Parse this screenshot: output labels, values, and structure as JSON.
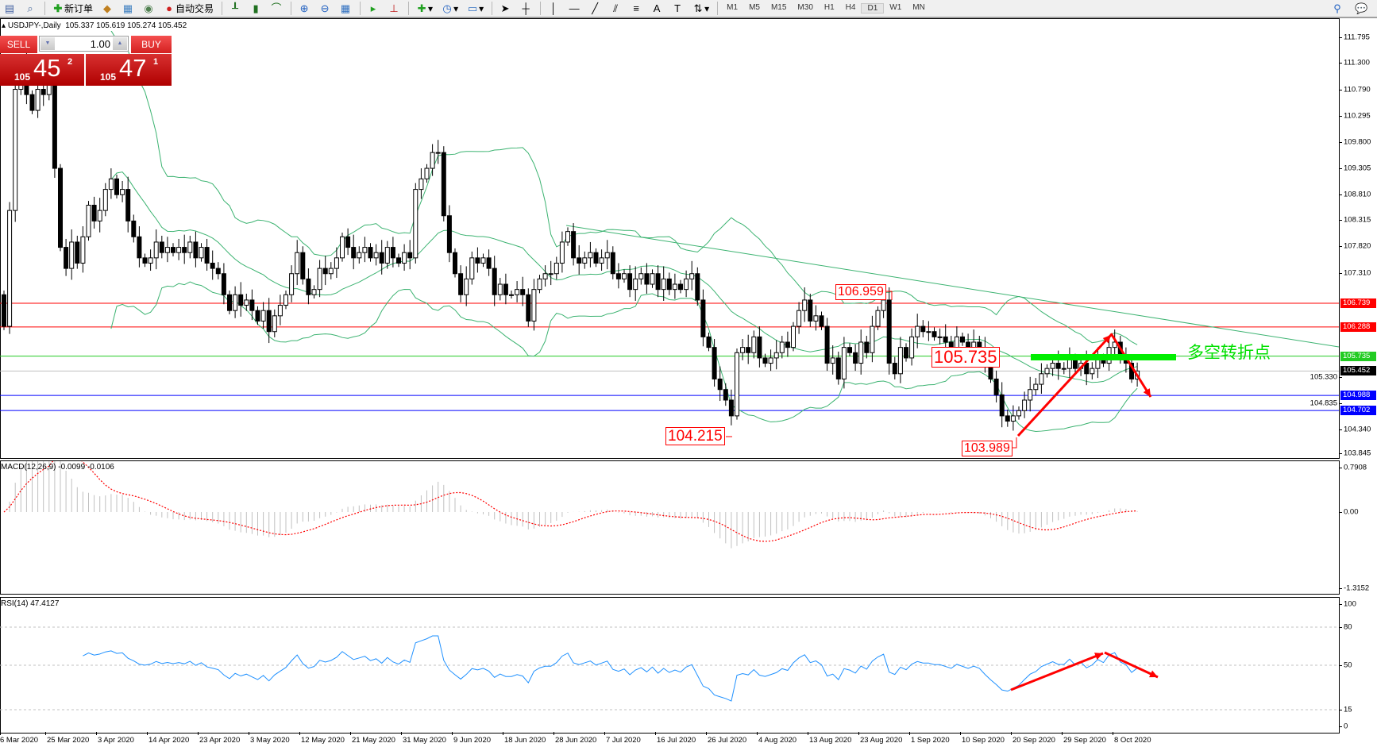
{
  "toolbar": {
    "new_order": "新订单",
    "auto_trading": "自动交易",
    "timeframes": [
      "M1",
      "M5",
      "M15",
      "M30",
      "H1",
      "H4",
      "D1",
      "W1",
      "MN"
    ],
    "active_timeframe": "D1",
    "icons": [
      "new-chart-icon",
      "profiles-icon",
      "new-order-icon",
      "metaeditor-icon",
      "navigator-icon",
      "signals-icon",
      "auto-trading-icon",
      "bar-chart-icon",
      "candlestick-icon",
      "line-chart-icon",
      "zoom-in-icon",
      "zoom-out-icon",
      "tile-windows-icon",
      "autoscroll-icon",
      "chart-shift-icon",
      "indicators-icon",
      "periods-icon",
      "templates-icon",
      "cursor-icon",
      "crosshair-icon",
      "vertical-line-icon",
      "horizontal-line-icon",
      "trendline-icon",
      "equidistant-channel-icon",
      "fibonacci-icon",
      "text-icon",
      "text-label-icon",
      "arrows-icon",
      "search-icon",
      "chat-icon"
    ]
  },
  "chart": {
    "title": "USDJPY-,Daily",
    "ohlc_readout": "105.337 105.619 105.274 105.452"
  },
  "trade_panel": {
    "sell_label": "SELL",
    "buy_label": "BUY",
    "lot": "1.00",
    "sell_price": {
      "prefix": "105",
      "big": "45",
      "sup": "2"
    },
    "buy_price": {
      "prefix": "105",
      "big": "47",
      "sup": "1"
    }
  },
  "indicators": {
    "macd_label": "MACD(12,26,9) -0.0099 -0.0106",
    "rsi_label": "RSI(14) 47.4127"
  },
  "annotations": {
    "high_label": "106.959",
    "mid_label": "105.735",
    "low_label_1": "104.215",
    "low_label_2": "103.989",
    "turning_point_text": "多空转折点"
  },
  "chart_data": {
    "type": "candlestick",
    "symbol": "USDJPY-",
    "timeframe": "Daily",
    "closes": [
      106.3,
      108.5,
      110.8,
      111.3,
      110.7,
      110.4,
      110.8,
      110.7,
      110.9,
      109.3,
      107.8,
      107.4,
      107.9,
      107.5,
      108.0,
      108.6,
      108.3,
      108.5,
      108.9,
      109.1,
      108.8,
      108.9,
      108.3,
      108.0,
      107.6,
      107.5,
      107.6,
      107.9,
      107.7,
      107.8,
      107.7,
      107.8,
      107.7,
      107.9,
      107.6,
      107.8,
      107.5,
      107.4,
      107.3,
      106.9,
      106.6,
      106.9,
      106.7,
      106.8,
      106.6,
      106.4,
      106.6,
      106.2,
      106.5,
      106.7,
      106.9,
      107.3,
      107.7,
      107.2,
      106.9,
      107.0,
      107.4,
      107.3,
      107.4,
      107.6,
      108.0,
      107.8,
      107.6,
      107.7,
      107.8,
      107.6,
      107.7,
      107.5,
      107.8,
      107.6,
      107.5,
      107.7,
      107.6,
      108.9,
      109.1,
      109.3,
      109.6,
      109.6,
      108.4,
      107.7,
      107.3,
      106.9,
      107.2,
      107.6,
      107.5,
      107.6,
      107.4,
      106.9,
      107.1,
      106.9,
      106.9,
      107.0,
      106.9,
      106.4,
      107.0,
      107.2,
      107.3,
      107.3,
      107.5,
      107.9,
      108.1,
      107.6,
      107.5,
      107.6,
      107.7,
      107.5,
      107.6,
      107.7,
      107.3,
      107.2,
      107.3,
      107.0,
      107.2,
      107.3,
      107.1,
      107.3,
      107.0,
      107.2,
      107.0,
      107.1,
      107.0,
      107.2,
      107.3,
      106.8,
      106.1,
      105.9,
      105.3,
      105.1,
      104.9,
      104.6,
      105.8,
      105.9,
      105.8,
      106.1,
      105.7,
      105.6,
      105.7,
      105.8,
      106.0,
      105.9,
      106.3,
      106.6,
      106.8,
      106.4,
      106.5,
      106.3,
      105.6,
      105.7,
      105.3,
      105.9,
      105.8,
      105.6,
      106.0,
      105.8,
      106.3,
      106.6,
      106.8,
      105.6,
      105.4,
      105.9,
      105.7,
      106.1,
      106.3,
      106.2,
      106.2,
      106.1,
      106.1,
      106.0,
      105.9,
      106.1,
      106.0,
      105.9,
      106.0,
      105.9,
      105.6,
      105.3,
      105.0,
      104.6,
      104.5,
      104.6,
      104.7,
      104.9,
      105.1,
      105.2,
      105.4,
      105.5,
      105.6,
      105.5,
      105.5,
      105.7,
      105.5,
      105.6,
      105.4,
      105.5,
      105.7,
      105.6,
      105.9,
      106.0,
      105.7,
      105.6,
      105.3,
      105.452
    ],
    "ylim": [
      103.845,
      111.795
    ],
    "price_axis_ticks": [
      "111.795",
      "111.300",
      "110.790",
      "110.295",
      "109.800",
      "109.305",
      "108.810",
      "108.315",
      "107.820",
      "107.310",
      "105.330",
      "104.835",
      "104.340",
      "103.845"
    ],
    "levels": [
      {
        "value": "106.739",
        "color": "#ff0000"
      },
      {
        "value": "106.288",
        "color": "#ff0000"
      },
      {
        "value": "105.735",
        "color": "#22cc22"
      },
      {
        "value": "105.452",
        "color": "#000000",
        "line_color": "#c0c0c0"
      },
      {
        "value": "104.988",
        "color": "#0000ff"
      },
      {
        "value": "104.702",
        "color": "#0000ff"
      }
    ],
    "date_labels": [
      "6 Mar 2020",
      "25 Mar 2020",
      "3 Apr 2020",
      "14 Apr 2020",
      "23 Apr 2020",
      "3 May 2020",
      "12 May 2020",
      "21 May 2020",
      "31 May 2020",
      "9 Jun 2020",
      "18 Jun 2020",
      "28 Jun 2020",
      "7 Jul 2020",
      "16 Jul 2020",
      "26 Jul 2020",
      "4 Aug 2020",
      "13 Aug 2020",
      "23 Aug 2020",
      "1 Sep 2020",
      "10 Sep 2020",
      "20 Sep 2020",
      "29 Sep 2020",
      "8 Oct 2020"
    ],
    "bollinger": {
      "period": 20,
      "deviation": 2,
      "color": "#3cb371"
    },
    "macd": {
      "fast": 12,
      "slow": 26,
      "signal": 9,
      "ticks": [
        "0.7908",
        "0.00",
        "-1.3152"
      ],
      "ylim": [
        -1.3152,
        0.7908
      ],
      "histogram_color": "#c0c0c0",
      "signal_color": "#ff0000"
    },
    "rsi": {
      "period": 14,
      "ticks": [
        "100",
        "80",
        "50",
        "15",
        "0"
      ],
      "levels": [
        80,
        50,
        15
      ],
      "color": "#1e90ff"
    },
    "colors": {
      "bull_body": "#ffffff",
      "bear_body": "#000000",
      "annotation": "#ff0000",
      "trendline": "#3cb371"
    }
  }
}
